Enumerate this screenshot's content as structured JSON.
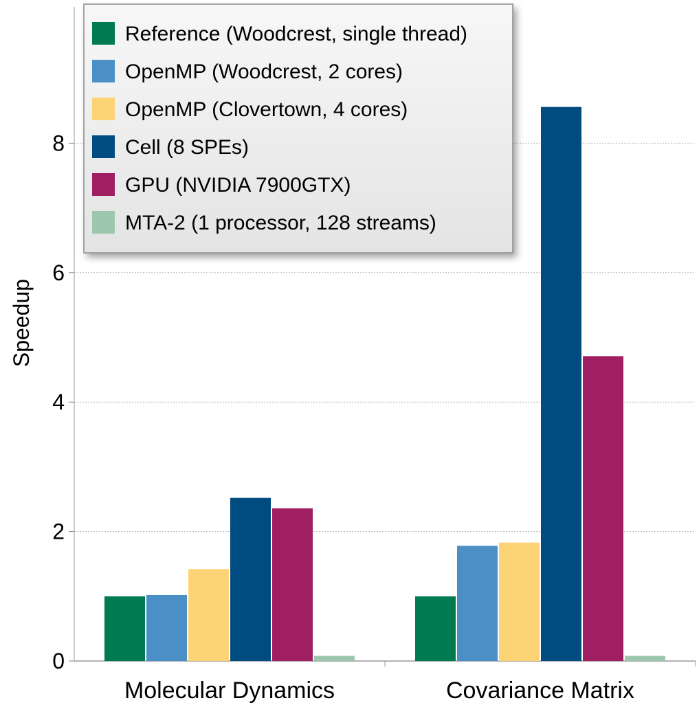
{
  "chart_data": {
    "type": "bar",
    "title": "",
    "xlabel": "",
    "ylabel": "Speedup",
    "ylim": [
      0,
      10
    ],
    "y_ticks": [
      0,
      2,
      4,
      6,
      8
    ],
    "grid": true,
    "legend_position": "top-left",
    "categories": [
      "Molecular Dynamics",
      "Covariance Matrix"
    ],
    "series": [
      {
        "name": "Reference (Woodcrest, single thread)",
        "color": "#007a50",
        "values": [
          1.0,
          1.0
        ]
      },
      {
        "name": "OpenMP (Woodcrest, 2 cores)",
        "color": "#4a90c6",
        "values": [
          1.02,
          1.78
        ]
      },
      {
        "name": "OpenMP (Clovertown, 4 cores)",
        "color": "#fdd475",
        "values": [
          1.42,
          1.83
        ]
      },
      {
        "name": "Cell (8 SPEs)",
        "color": "#004b80",
        "values": [
          2.52,
          8.56
        ]
      },
      {
        "name": "GPU (NVIDIA 7900GTX)",
        "color": "#a01f62",
        "values": [
          2.36,
          4.71
        ]
      },
      {
        "name": "MTA-2 (1 processor, 128 streams)",
        "color": "#9ec8ad",
        "values": [
          0.08,
          0.08
        ]
      }
    ]
  }
}
